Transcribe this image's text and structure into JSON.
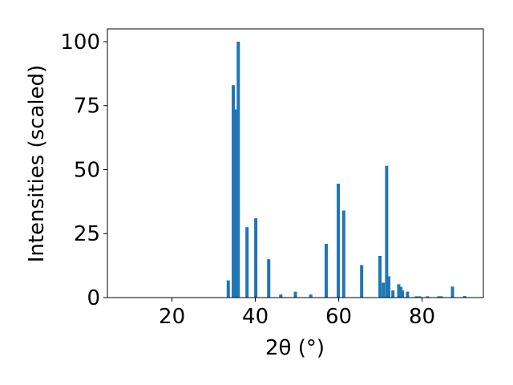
{
  "chart_data": {
    "type": "bar",
    "xlabel": "2θ (°)",
    "ylabel": "Intensities (scaled)",
    "x": [
      33.5,
      34.7,
      35.3,
      35.9,
      38.0,
      40.1,
      43.2,
      46.1,
      49.6,
      53.3,
      57.0,
      59.9,
      61.2,
      65.5,
      69.9,
      70.7,
      71.5,
      72.0,
      73.0,
      74.4,
      74.9,
      75.3,
      76.5,
      78.6,
      79.4,
      81.3,
      84.0,
      84.6,
      87.3,
      90.2
    ],
    "values": [
      6.7,
      83,
      73.5,
      100,
      27.5,
      31,
      15,
      1.2,
      2.3,
      1.2,
      21,
      44.5,
      34,
      12.7,
      16.3,
      5.8,
      51.5,
      8.3,
      2.8,
      5.2,
      4.2,
      2.8,
      2.3,
      0.5,
      0.5,
      0.5,
      0.5,
      0.5,
      4.3,
      0.6
    ],
    "color": "#1f77b4",
    "xlim": [
      4.5,
      94.7
    ],
    "xticks": [
      20,
      40,
      60,
      80
    ],
    "ylim": [
      0,
      105
    ],
    "yticks": [
      0,
      25,
      50,
      75,
      100
    ]
  }
}
